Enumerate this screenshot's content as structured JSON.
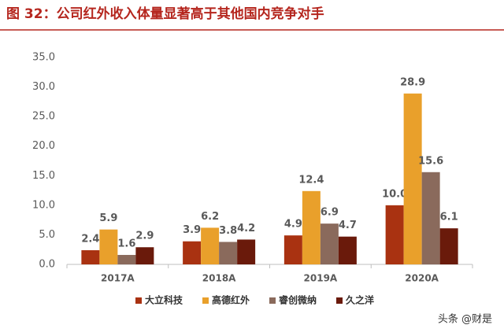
{
  "chart_data": {
    "type": "bar",
    "title": "图 32：公司红外收入体量显著高于其他国内竞争对手",
    "categories": [
      "2017A",
      "2018A",
      "2019A",
      "2020A"
    ],
    "series": [
      {
        "name": "大立科技",
        "color": "#a93211",
        "values": [
          2.4,
          3.9,
          4.9,
          10.0
        ],
        "value_labels": [
          "2.4",
          "3.9",
          "4.9",
          "10.0"
        ]
      },
      {
        "name": "高德红外",
        "color": "#e9a02b",
        "values": [
          5.9,
          6.2,
          12.4,
          28.9
        ],
        "value_labels": [
          "5.9",
          "6.2",
          "12.4",
          "28.9"
        ]
      },
      {
        "name": "睿创微纳",
        "color": "#8a6a5c",
        "values": [
          1.6,
          3.8,
          6.9,
          15.6
        ],
        "value_labels": [
          "1.6",
          "3.8",
          "6.9",
          "15.6"
        ]
      },
      {
        "name": "久之洋",
        "color": "#6a1a0b",
        "values": [
          2.9,
          4.2,
          4.7,
          6.1
        ],
        "value_labels": [
          "2.9",
          "4.2",
          "4.7",
          "6.1"
        ]
      }
    ],
    "ylim": [
      0,
      35
    ],
    "yticks": [
      {
        "value": 0,
        "label": "0.0"
      },
      {
        "value": 5,
        "label": "5.0"
      },
      {
        "value": 10,
        "label": "10.0"
      },
      {
        "value": 15,
        "label": "15.0"
      },
      {
        "value": 20,
        "label": "20.0"
      },
      {
        "value": 25,
        "label": "25.0"
      },
      {
        "value": 30,
        "label": "30.0"
      },
      {
        "value": 35,
        "label": "35.0"
      }
    ],
    "grid": false,
    "legend": "bottom",
    "watermark": "头条 @财是"
  }
}
